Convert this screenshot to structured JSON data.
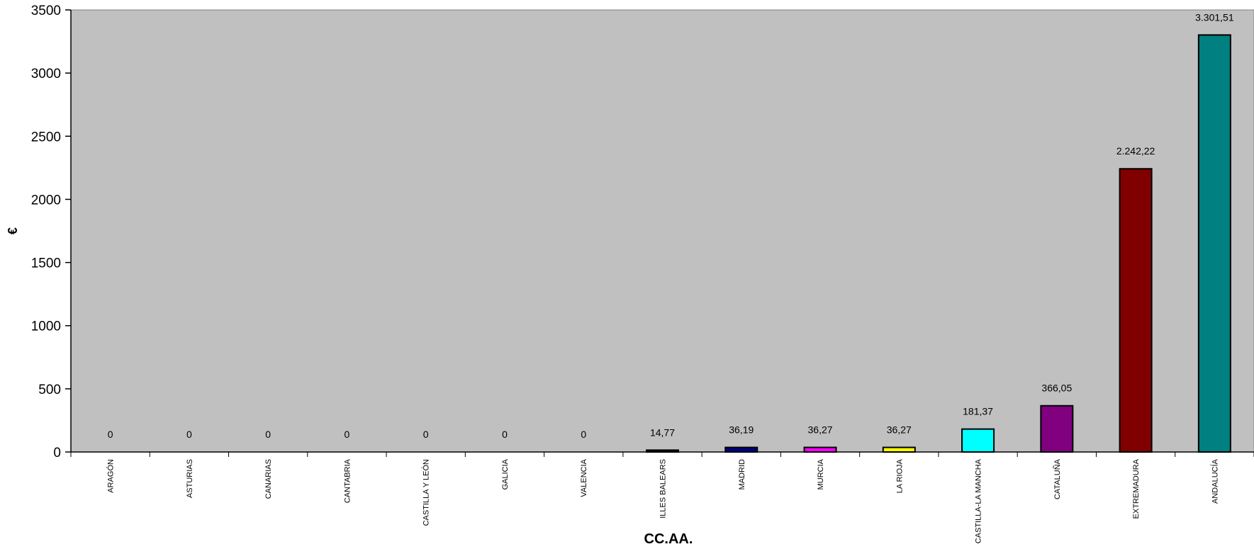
{
  "chart_data": {
    "type": "bar",
    "xlabel": "CC.AA.",
    "ylabel": "€",
    "ylim": [
      0,
      3500
    ],
    "yticks": [
      "0",
      "500",
      "1000",
      "1500",
      "2000",
      "2500",
      "3000",
      "3500"
    ],
    "grid": false,
    "plot_background": "#c0c0c0",
    "categories": [
      "ARAGÓN",
      "ASTURIAS",
      "CANARIAS",
      "CANTABRIA",
      "CASTILLA Y LEÓN",
      "GALICIA",
      "VALENCIA",
      "ILLES BALEARS",
      "MADRID",
      "MURCIA",
      "LA RIOJA",
      "CASTILLA-LA MANCHA",
      "CATALUÑA",
      "EXTREMADURA",
      "ANDALUCÍA"
    ],
    "values": [
      0,
      0,
      0,
      0,
      0,
      0,
      0,
      14.77,
      36.19,
      36.27,
      36.27,
      181.37,
      366.05,
      2242.22,
      3301.51
    ],
    "value_labels": [
      "0",
      "0",
      "0",
      "0",
      "0",
      "0",
      "0",
      "14,77",
      "36,19",
      "36,27",
      "36,27",
      "181,37",
      "366,05",
      "2.242,22",
      "3.301,51"
    ],
    "colors": [
      "#000000",
      "#000000",
      "#000000",
      "#000000",
      "#000000",
      "#000000",
      "#000000",
      "#000000",
      "#000080",
      "#ff00ff",
      "#ffff00",
      "#00ffff",
      "#800080",
      "#800000",
      "#008080"
    ]
  }
}
